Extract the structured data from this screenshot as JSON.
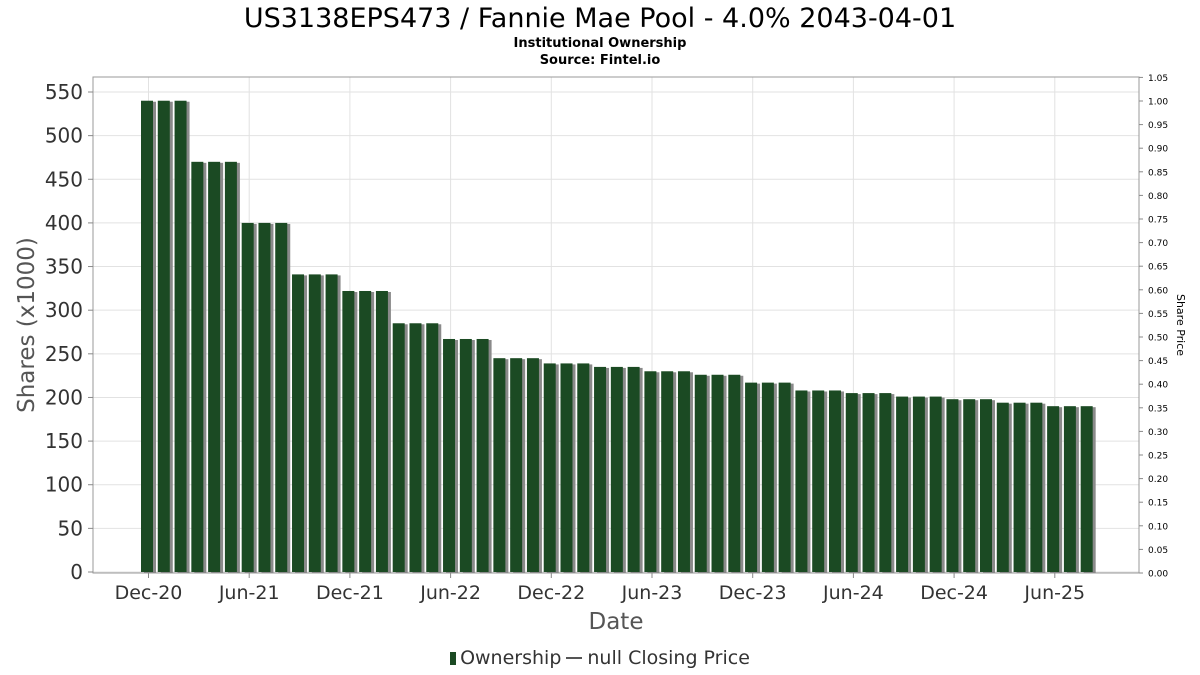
{
  "chart_data": {
    "type": "bar",
    "title": "US3138EPS473 / Fannie Mae Pool - 4.0% 2043-04-01",
    "subtitle": "Institutional Ownership",
    "source": "Source: Fintel.io",
    "xlabel": "Date",
    "ylabel": "Shares (x1000)",
    "y2label": "Share Price",
    "ylim": [
      0,
      565
    ],
    "y2lim": [
      0,
      1.05
    ],
    "yticks": [
      0,
      50,
      100,
      150,
      200,
      250,
      300,
      350,
      400,
      450,
      500,
      550
    ],
    "y2ticks": [
      "0.00",
      "0.05",
      "0.10",
      "0.15",
      "0.20",
      "0.25",
      "0.30",
      "0.35",
      "0.40",
      "0.45",
      "0.50",
      "0.55",
      "0.60",
      "0.65",
      "0.70",
      "0.75",
      "0.80",
      "0.85",
      "0.90",
      "0.95",
      "1.00",
      "1.05"
    ],
    "x_tick_labels": [
      "Dec-20",
      "Jun-21",
      "Dec-21",
      "Jun-22",
      "Dec-22",
      "Jun-23",
      "Dec-23",
      "Jun-24",
      "Dec-24",
      "Jun-25"
    ],
    "grid": true,
    "legend_position": "bottom",
    "series": [
      {
        "name": "Ownership",
        "color": "#1b4a23",
        "values": [
          540,
          540,
          540,
          470,
          470,
          470,
          400,
          400,
          400,
          341,
          341,
          341,
          322,
          322,
          322,
          285,
          285,
          285,
          267,
          267,
          267,
          245,
          245,
          245,
          239,
          239,
          239,
          235,
          235,
          235,
          230,
          230,
          230,
          226,
          226,
          226,
          217,
          217,
          217,
          208,
          208,
          208,
          205,
          205,
          205,
          201,
          201,
          201,
          198,
          198,
          198,
          194,
          194,
          194,
          190,
          190,
          190
        ]
      },
      {
        "name": "null Closing Price",
        "color": "#555555",
        "values": []
      }
    ]
  }
}
